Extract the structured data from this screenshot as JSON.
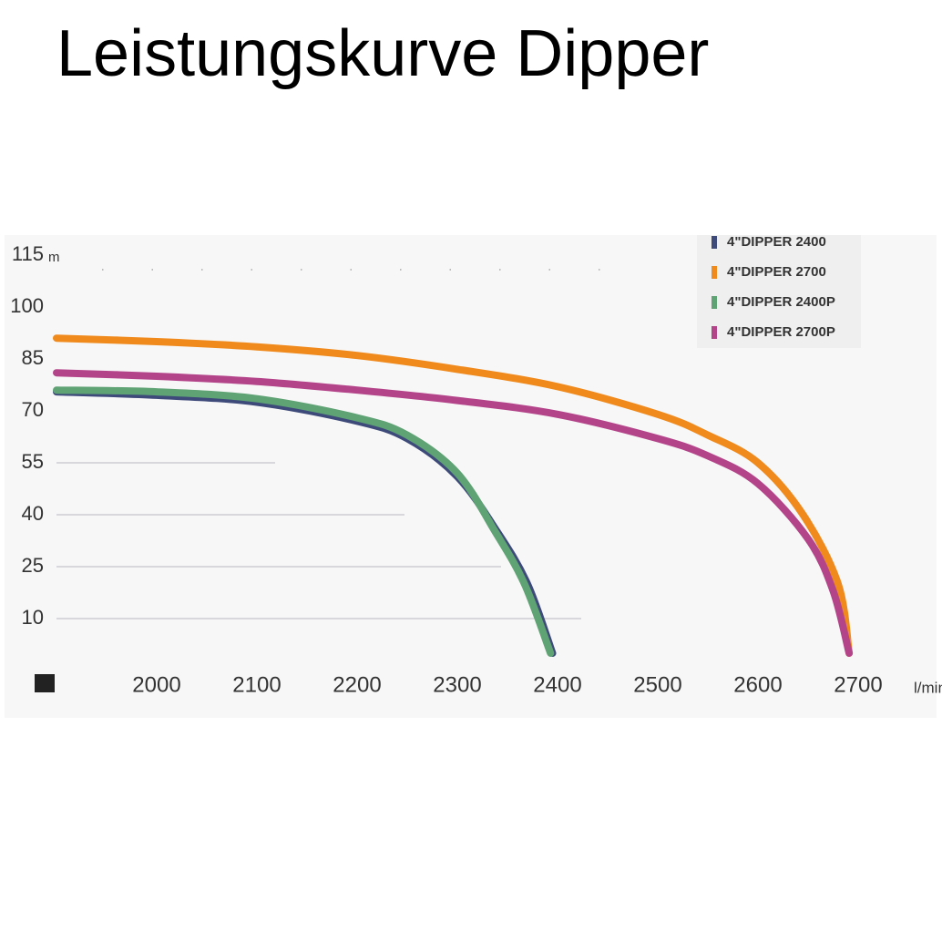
{
  "chart_data": {
    "type": "line",
    "title": "Leistungskurve Dipper",
    "y_unit": "m",
    "x_unit": "l/min",
    "xlim": [
      1900,
      2750
    ],
    "xticks": [
      2000,
      2100,
      2200,
      2300,
      2400,
      2500,
      2600,
      2700
    ],
    "ylim": [
      0,
      115
    ],
    "yticks": [
      10,
      25,
      40,
      55,
      70,
      85,
      100,
      115
    ],
    "grid": true,
    "legend": "top-right",
    "series": [
      {
        "name": "4\"DIPPER 2700",
        "color": "#f08a1c",
        "x": [
          1900,
          2000,
          2100,
          2200,
          2300,
          2400,
          2500,
          2550,
          2600,
          2645,
          2680,
          2691
        ],
        "values": [
          91,
          90,
          88.5,
          86,
          82,
          77,
          69,
          63,
          55,
          40,
          20,
          0
        ]
      },
      {
        "name": "4\"DIPPER 2700P",
        "color": "#b4448a",
        "x": [
          1900,
          2000,
          2100,
          2200,
          2300,
          2400,
          2500,
          2550,
          2600,
          2650,
          2675,
          2691
        ],
        "values": [
          81,
          80,
          78.5,
          76,
          73,
          69,
          62,
          57,
          49,
          33,
          18,
          0
        ]
      },
      {
        "name": "4\"DIPPER 2400",
        "color": "#3d4a7a",
        "x": [
          1900,
          2000,
          2100,
          2200,
          2250,
          2300,
          2340,
          2370,
          2395
        ],
        "values": [
          75.5,
          74.5,
          72.5,
          67,
          62,
          51,
          35,
          20,
          0
        ]
      },
      {
        "name": "4\"DIPPER 2400P",
        "color": "#5fa274",
        "x": [
          1900,
          2000,
          2100,
          2200,
          2250,
          2300,
          2338,
          2367,
          2393
        ],
        "values": [
          76,
          75.5,
          73.5,
          68,
          63,
          52,
          35,
          20,
          0
        ]
      }
    ]
  }
}
